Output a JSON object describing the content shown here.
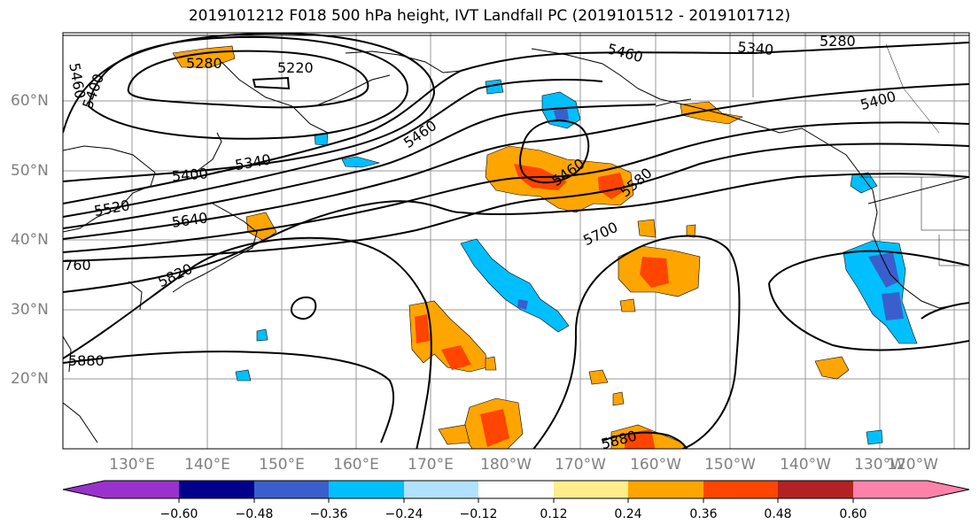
{
  "title": "2019101212 F018 500 hPa height, IVT Landfall PC (2019101512 - 2019101712)",
  "latitude_labels": [
    "60°N",
    "50°N",
    "40°N",
    "30°N",
    "20°N"
  ],
  "longitude_labels": [
    "130°E",
    "140°E",
    "150°E",
    "160°E",
    "170°E",
    "180°W",
    "170°W",
    "160°W",
    "150°W",
    "140°W",
    "130°W",
    "120°W"
  ],
  "contour_labels": [
    "5460",
    "5400",
    "5280",
    "5220",
    "5460",
    "5340",
    "5280",
    "5400",
    "5460",
    "5340",
    "5400",
    "5520",
    "5640",
    "5460",
    "5580",
    "5700",
    "5820",
    "5880",
    "5880",
    "5760"
  ],
  "colorbar": {
    "ticks": [
      "−0.60",
      "−0.48",
      "−0.36",
      "−0.24",
      "−0.12",
      "0.12",
      "0.24",
      "0.36",
      "0.48",
      "0.60"
    ],
    "colors": [
      "#9932cc",
      "#00008b",
      "#3a5fcd",
      "#00bfff",
      "#b0e2ff",
      "#ffffff",
      "#ffec8b",
      "#ffa500",
      "#ff4500",
      "#b22222",
      "#ff82ab"
    ]
  }
}
